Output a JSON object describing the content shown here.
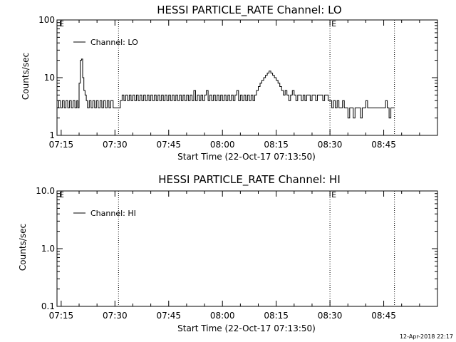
{
  "footer": {
    "timestamp": "12-Apr-2018 22:17"
  },
  "chart_data": [
    {
      "type": "line",
      "title": "HESSI PARTICLE_RATE Channel: LO",
      "xlabel": "Start Time (22-Oct-17 07:13:50)",
      "ylabel": "Counts/sec",
      "yscale": "log",
      "ylim": [
        1,
        100
      ],
      "xlim": [
        "07:13:50",
        "09:00:00"
      ],
      "x_ticks": [
        "07:15",
        "07:30",
        "07:45",
        "08:00",
        "08:15",
        "08:30",
        "08:45"
      ],
      "y_ticks": [
        "1",
        "10",
        "100"
      ],
      "legend": {
        "label": "Channel: LO",
        "position": "top-left"
      },
      "markers": [
        {
          "time": "07:31",
          "label": ""
        },
        {
          "time": "08:30",
          "label": "E"
        },
        {
          "time": "08:48",
          "label": ""
        }
      ],
      "corner_label": "E",
      "series": [
        {
          "name": "Channel: LO",
          "points": [
            [
              "07:13:50",
              3
            ],
            [
              "07:14:20",
              4
            ],
            [
              "07:14:50",
              3
            ],
            [
              "07:15:20",
              4
            ],
            [
              "07:15:50",
              3
            ],
            [
              "07:16:20",
              4
            ],
            [
              "07:16:50",
              3
            ],
            [
              "07:17:20",
              4
            ],
            [
              "07:17:50",
              3
            ],
            [
              "07:18:20",
              4
            ],
            [
              "07:18:50",
              3
            ],
            [
              "07:19:20",
              4
            ],
            [
              "07:19:40",
              3
            ],
            [
              "07:20:00",
              8
            ],
            [
              "07:20:20",
              20
            ],
            [
              "07:20:40",
              21
            ],
            [
              "07:21:00",
              10
            ],
            [
              "07:21:20",
              6
            ],
            [
              "07:21:40",
              5
            ],
            [
              "07:22:00",
              4
            ],
            [
              "07:22:20",
              3
            ],
            [
              "07:22:50",
              4
            ],
            [
              "07:23:20",
              3
            ],
            [
              "07:23:50",
              4
            ],
            [
              "07:24:20",
              3
            ],
            [
              "07:24:50",
              4
            ],
            [
              "07:25:20",
              3
            ],
            [
              "07:25:50",
              4
            ],
            [
              "07:26:20",
              3
            ],
            [
              "07:26:50",
              4
            ],
            [
              "07:27:20",
              3
            ],
            [
              "07:27:50",
              4
            ],
            [
              "07:28:20",
              3
            ],
            [
              "07:28:50",
              4
            ],
            [
              "07:29:30",
              3
            ],
            [
              "07:30:00",
              3
            ],
            [
              "07:31:00",
              3
            ],
            [
              "07:31:30",
              4
            ],
            [
              "07:32:00",
              5
            ],
            [
              "07:32:30",
              4
            ],
            [
              "07:33:00",
              5
            ],
            [
              "07:33:30",
              4
            ],
            [
              "07:34:00",
              5
            ],
            [
              "07:34:30",
              4
            ],
            [
              "07:35:00",
              5
            ],
            [
              "07:35:30",
              4
            ],
            [
              "07:36:00",
              5
            ],
            [
              "07:36:30",
              4
            ],
            [
              "07:37:00",
              5
            ],
            [
              "07:37:30",
              4
            ],
            [
              "07:38:00",
              5
            ],
            [
              "07:38:30",
              4
            ],
            [
              "07:39:00",
              5
            ],
            [
              "07:39:30",
              4
            ],
            [
              "07:40:00",
              5
            ],
            [
              "07:40:30",
              4
            ],
            [
              "07:41:00",
              5
            ],
            [
              "07:41:30",
              4
            ],
            [
              "07:42:00",
              5
            ],
            [
              "07:42:30",
              4
            ],
            [
              "07:43:00",
              5
            ],
            [
              "07:43:30",
              4
            ],
            [
              "07:44:00",
              5
            ],
            [
              "07:44:30",
              4
            ],
            [
              "07:45:00",
              5
            ],
            [
              "07:45:30",
              4
            ],
            [
              "07:46:00",
              5
            ],
            [
              "07:46:30",
              4
            ],
            [
              "07:47:00",
              5
            ],
            [
              "07:47:30",
              4
            ],
            [
              "07:48:00",
              5
            ],
            [
              "07:48:30",
              4
            ],
            [
              "07:49:00",
              5
            ],
            [
              "07:49:30",
              4
            ],
            [
              "07:50:00",
              5
            ],
            [
              "07:50:30",
              4
            ],
            [
              "07:51:00",
              5
            ],
            [
              "07:51:30",
              4
            ],
            [
              "07:52:00",
              6
            ],
            [
              "07:52:30",
              4
            ],
            [
              "07:53:00",
              5
            ],
            [
              "07:53:30",
              4
            ],
            [
              "07:54:00",
              5
            ],
            [
              "07:54:30",
              4
            ],
            [
              "07:55:00",
              5
            ],
            [
              "07:55:30",
              6
            ],
            [
              "07:56:00",
              4
            ],
            [
              "07:56:30",
              5
            ],
            [
              "07:57:00",
              4
            ],
            [
              "07:57:30",
              5
            ],
            [
              "07:58:00",
              4
            ],
            [
              "07:58:30",
              5
            ],
            [
              "07:59:00",
              4
            ],
            [
              "07:59:30",
              5
            ],
            [
              "08:00:00",
              4
            ],
            [
              "08:00:30",
              5
            ],
            [
              "08:01:00",
              4
            ],
            [
              "08:01:30",
              5
            ],
            [
              "08:02:00",
              4
            ],
            [
              "08:02:30",
              5
            ],
            [
              "08:03:00",
              4
            ],
            [
              "08:03:30",
              5
            ],
            [
              "08:04:00",
              6
            ],
            [
              "08:04:30",
              4
            ],
            [
              "08:05:00",
              5
            ],
            [
              "08:05:30",
              4
            ],
            [
              "08:06:00",
              5
            ],
            [
              "08:06:30",
              4
            ],
            [
              "08:07:00",
              5
            ],
            [
              "08:07:30",
              4
            ],
            [
              "08:08:00",
              5
            ],
            [
              "08:08:30",
              4
            ],
            [
              "08:09:00",
              5
            ],
            [
              "08:09:30",
              6
            ],
            [
              "08:10:00",
              7
            ],
            [
              "08:10:30",
              8
            ],
            [
              "08:11:00",
              9
            ],
            [
              "08:11:30",
              10
            ],
            [
              "08:12:00",
              11
            ],
            [
              "08:12:30",
              12
            ],
            [
              "08:13:00",
              13
            ],
            [
              "08:13:30",
              12
            ],
            [
              "08:14:00",
              11
            ],
            [
              "08:14:30",
              10
            ],
            [
              "08:15:00",
              9
            ],
            [
              "08:15:30",
              8
            ],
            [
              "08:16:00",
              7
            ],
            [
              "08:16:30",
              6
            ],
            [
              "08:17:00",
              5
            ],
            [
              "08:17:30",
              6
            ],
            [
              "08:18:00",
              5
            ],
            [
              "08:18:30",
              4
            ],
            [
              "08:19:00",
              5
            ],
            [
              "08:19:30",
              6
            ],
            [
              "08:20:00",
              5
            ],
            [
              "08:20:30",
              4
            ],
            [
              "08:21:00",
              5
            ],
            [
              "08:21:30",
              5
            ],
            [
              "08:22:00",
              4
            ],
            [
              "08:22:30",
              5
            ],
            [
              "08:23:00",
              4
            ],
            [
              "08:23:30",
              5
            ],
            [
              "08:24:00",
              5
            ],
            [
              "08:24:30",
              4
            ],
            [
              "08:25:00",
              5
            ],
            [
              "08:25:30",
              5
            ],
            [
              "08:26:00",
              4
            ],
            [
              "08:26:30",
              5
            ],
            [
              "08:27:00",
              5
            ],
            [
              "08:27:30",
              5
            ],
            [
              "08:28:00",
              4
            ],
            [
              "08:28:30",
              5
            ],
            [
              "08:29:00",
              5
            ],
            [
              "08:29:30",
              4
            ],
            [
              "08:30:00",
              4
            ],
            [
              "08:30:30",
              3
            ],
            [
              "08:31:00",
              4
            ],
            [
              "08:31:30",
              3
            ],
            [
              "08:32:00",
              4
            ],
            [
              "08:32:30",
              3
            ],
            [
              "08:33:00",
              3
            ],
            [
              "08:33:30",
              4
            ],
            [
              "08:34:00",
              3
            ],
            [
              "08:34:30",
              3
            ],
            [
              "08:35:00",
              2
            ],
            [
              "08:35:30",
              3
            ],
            [
              "08:36:00",
              3
            ],
            [
              "08:36:30",
              2
            ],
            [
              "08:37:00",
              3
            ],
            [
              "08:37:30",
              3
            ],
            [
              "08:38:00",
              3
            ],
            [
              "08:38:30",
              2
            ],
            [
              "08:39:00",
              3
            ],
            [
              "08:39:30",
              3
            ],
            [
              "08:40:00",
              4
            ],
            [
              "08:40:30",
              3
            ],
            [
              "08:41:00",
              3
            ],
            [
              "08:41:30",
              3
            ],
            [
              "08:42:00",
              3
            ],
            [
              "08:42:30",
              3
            ],
            [
              "08:43:00",
              3
            ],
            [
              "08:43:30",
              3
            ],
            [
              "08:44:00",
              3
            ],
            [
              "08:44:30",
              3
            ],
            [
              "08:45:00",
              3
            ],
            [
              "08:45:30",
              4
            ],
            [
              "08:46:00",
              3
            ],
            [
              "08:46:30",
              2
            ],
            [
              "08:47:00",
              3
            ],
            [
              "08:47:30",
              3
            ],
            [
              "08:48:00",
              3
            ]
          ]
        }
      ]
    },
    {
      "type": "line",
      "title": "HESSI PARTICLE_RATE Channel: HI",
      "xlabel": "Start Time (22-Oct-17 07:13:50)",
      "ylabel": "Counts/sec",
      "yscale": "log",
      "ylim": [
        0.1,
        10.0
      ],
      "xlim": [
        "07:13:50",
        "09:00:00"
      ],
      "x_ticks": [
        "07:15",
        "07:30",
        "07:45",
        "08:00",
        "08:15",
        "08:30",
        "08:45"
      ],
      "y_ticks": [
        "0.1",
        "1.0",
        "10.0"
      ],
      "legend": {
        "label": "Channel: HI",
        "position": "top-left"
      },
      "markers": [
        {
          "time": "07:31",
          "label": ""
        },
        {
          "time": "08:30",
          "label": "E"
        },
        {
          "time": "08:48",
          "label": ""
        }
      ],
      "corner_label": "E",
      "series": [
        {
          "name": "Channel: HI",
          "points": []
        }
      ]
    }
  ]
}
